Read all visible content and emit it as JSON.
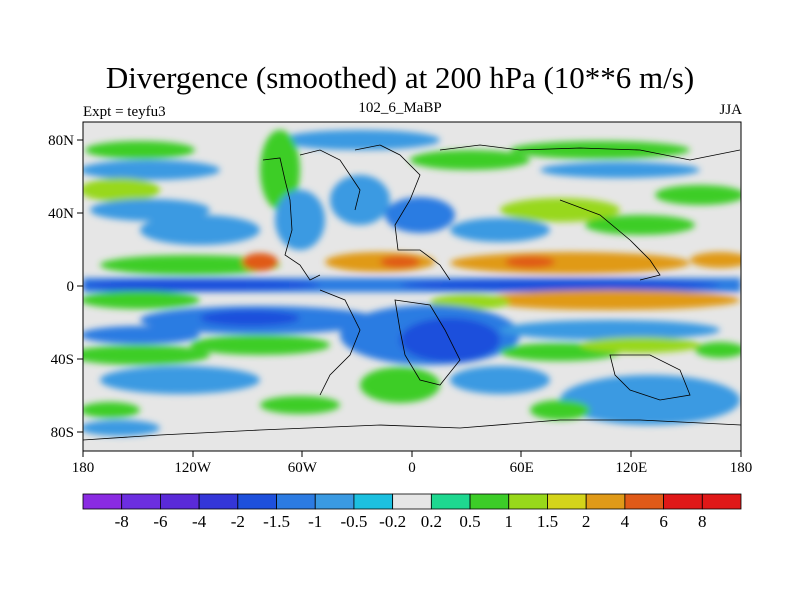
{
  "chart_data": {
    "type": "heatmap",
    "title": "Divergence (smoothed) at 200 hPa (10**6 m/s)",
    "subtitle_left": "Expt = teyfu3",
    "subtitle_center": "102_6_MaBP",
    "subtitle_right": "JJA",
    "x_ticks": [
      "180",
      "120W",
      "60W",
      "0",
      "60E",
      "120E",
      "180"
    ],
    "x_range": [
      -180,
      180
    ],
    "y_ticks": [
      "80N",
      "40N",
      "0",
      "40S",
      "80S"
    ],
    "y_range": [
      -90,
      90
    ],
    "colorbar_levels": [
      "-8",
      "-6",
      "-4",
      "-2",
      "-1.5",
      "-1",
      "-0.5",
      "-0.2",
      "0.2",
      "0.5",
      "1",
      "1.5",
      "2",
      "4",
      "6",
      "8"
    ],
    "colorbar_colors": [
      "#8a2be2",
      "#6c2ee0",
      "#5a2ad8",
      "#3436d8",
      "#1e50dc",
      "#2c7be2",
      "#3a9ae2",
      "#1cc0e0",
      "#e6e6e6",
      "#1ed890",
      "#3ccd28",
      "#98d81a",
      "#d4d41a",
      "#e09a18",
      "#e05a18",
      "#e01818",
      "#e01818"
    ]
  }
}
